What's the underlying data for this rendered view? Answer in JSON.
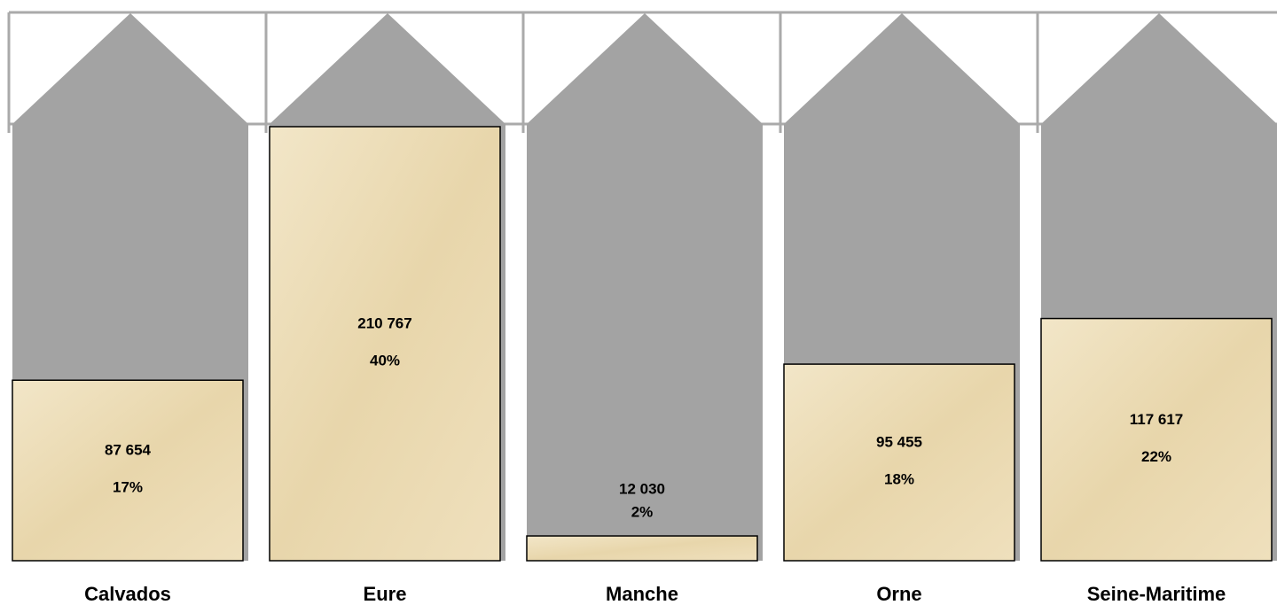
{
  "chart_data": {
    "type": "silo-bar",
    "categories": [
      "Calvados",
      "Eure",
      "Manche",
      "Orne",
      "Seine-Maritime"
    ],
    "values": [
      87654,
      210767,
      12030,
      95455,
      117617
    ],
    "value_labels": [
      "87 654",
      "210 767",
      "12 030",
      "95 455",
      "117 617"
    ],
    "shares": [
      17,
      40,
      2,
      18,
      22
    ],
    "share_labels": [
      "17%",
      "40%",
      "2%",
      "18%",
      "22%"
    ],
    "color": "#ead9b0"
  }
}
